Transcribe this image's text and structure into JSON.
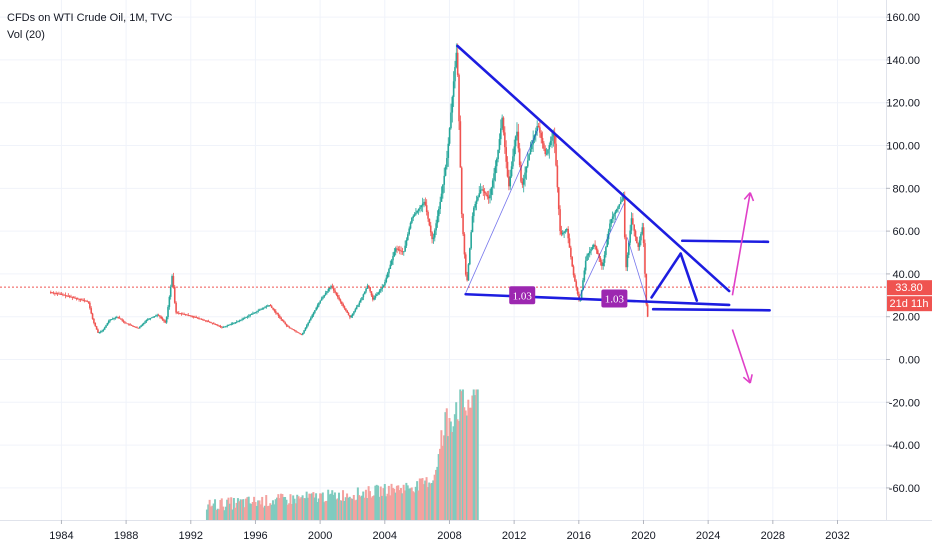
{
  "chart_data": {
    "type": "candlestick",
    "title": "CFDs on WTI Crude Oil, 1M, TVC",
    "indicator": "Vol (20)",
    "x_ticks": [
      "1984",
      "1988",
      "1992",
      "1996",
      "2000",
      "2004",
      "2008",
      "2012",
      "2016",
      "2020",
      "2024",
      "2028",
      "2032"
    ],
    "y_ticks": [
      "160.00",
      "140.00",
      "120.00",
      "100.00",
      "80.00",
      "60.00",
      "40.00",
      "20.00",
      "0.00",
      "-20.00",
      "-40.00",
      "-60.00"
    ],
    "ylim": [
      -75,
      168
    ],
    "xlim": [
      1980.2,
      2035.0
    ],
    "last_price": "33.80",
    "countdown": "21d 11h",
    "price_path": [
      [
        1983.3,
        31.5
      ],
      [
        1984.0,
        30.5
      ],
      [
        1985.0,
        28.5
      ],
      [
        1985.7,
        27.0
      ],
      [
        1986.0,
        18.0
      ],
      [
        1986.3,
        12.5
      ],
      [
        1986.6,
        13.5
      ],
      [
        1987.0,
        18.5
      ],
      [
        1987.5,
        20.0
      ],
      [
        1988.0,
        17.0
      ],
      [
        1988.8,
        14.5
      ],
      [
        1989.3,
        18.5
      ],
      [
        1990.0,
        21.0
      ],
      [
        1990.5,
        17.0
      ],
      [
        1990.8,
        34.0
      ],
      [
        1990.9,
        40.0
      ],
      [
        1991.1,
        22.0
      ],
      [
        1992.0,
        20.5
      ],
      [
        1993.0,
        18.0
      ],
      [
        1994.0,
        15.0
      ],
      [
        1995.0,
        18.0
      ],
      [
        1996.0,
        22.0
      ],
      [
        1996.9,
        25.5
      ],
      [
        1997.5,
        20.0
      ],
      [
        1998.0,
        15.5
      ],
      [
        1998.9,
        11.5
      ],
      [
        1999.5,
        20.0
      ],
      [
        2000.0,
        27.0
      ],
      [
        2000.7,
        34.5
      ],
      [
        2001.3,
        27.0
      ],
      [
        2001.9,
        19.5
      ],
      [
        2002.5,
        27.0
      ],
      [
        2003.0,
        35.0
      ],
      [
        2003.3,
        28.0
      ],
      [
        2004.0,
        35.0
      ],
      [
        2004.7,
        52.0
      ],
      [
        2005.2,
        50.0
      ],
      [
        2005.7,
        66.0
      ],
      [
        2006.5,
        74.0
      ],
      [
        2007.0,
        55.0
      ],
      [
        2007.5,
        75.0
      ],
      [
        2007.9,
        95.0
      ],
      [
        2008.3,
        130.0
      ],
      [
        2008.5,
        146.0
      ],
      [
        2008.8,
        68.0
      ],
      [
        2009.1,
        34.0
      ],
      [
        2009.5,
        70.0
      ],
      [
        2010.0,
        80.0
      ],
      [
        2010.5,
        75.0
      ],
      [
        2011.0,
        95.0
      ],
      [
        2011.3,
        113.0
      ],
      [
        2011.7,
        80.0
      ],
      [
        2012.2,
        108.0
      ],
      [
        2012.5,
        80.0
      ],
      [
        2013.0,
        97.0
      ],
      [
        2013.5,
        110.0
      ],
      [
        2014.0,
        95.0
      ],
      [
        2014.5,
        107.0
      ],
      [
        2014.9,
        58.0
      ],
      [
        2015.3,
        61.0
      ],
      [
        2015.7,
        40.0
      ],
      [
        2016.1,
        26.0
      ],
      [
        2016.5,
        48.0
      ],
      [
        2017.0,
        54.0
      ],
      [
        2017.5,
        43.0
      ],
      [
        2018.0,
        65.0
      ],
      [
        2018.8,
        76.0
      ],
      [
        2018.95,
        42.0
      ],
      [
        2019.3,
        66.0
      ],
      [
        2019.7,
        52.0
      ],
      [
        2020.0,
        63.0
      ],
      [
        2020.25,
        20.0
      ]
    ],
    "volume": {
      "start_year": 1993.0,
      "end_year": 2009.8,
      "levels": [
        [
          1993.0,
          -68
        ],
        [
          1997.0,
          -66
        ],
        [
          2000.0,
          -64
        ],
        [
          2002.0,
          -63
        ],
        [
          2004.0,
          -61
        ],
        [
          2006.0,
          -59
        ],
        [
          2007.0,
          -56
        ],
        [
          2007.8,
          -30
        ],
        [
          2008.5,
          -20
        ],
        [
          2009.0,
          -22
        ],
        [
          2009.8,
          -15
        ]
      ]
    },
    "overlays": {
      "trend_lines": [
        {
          "from": [
            2008.5,
            146.5
          ],
          "to": [
            2025.3,
            32.0
          ]
        },
        {
          "from": [
            2009.0,
            30.5
          ],
          "to": [
            2025.3,
            25.5
          ]
        },
        {
          "from": [
            2020.6,
            23.5
          ],
          "to": [
            2027.8,
            23.0
          ]
        },
        {
          "from": [
            2022.4,
            55.5
          ],
          "to": [
            2027.7,
            55.0
          ]
        },
        {
          "from": [
            2020.5,
            29.0
          ],
          "to": [
            2022.3,
            49.5
          ]
        },
        {
          "from": [
            2022.3,
            49.5
          ],
          "to": [
            2023.3,
            27.5
          ]
        }
      ],
      "thin_path": [
        [
          2009.0,
          31.0
        ],
        [
          2013.5,
          108.0
        ]
      ],
      "thin_path_2": [
        [
          2016.0,
          28.5
        ],
        [
          2018.8,
          73.0
        ]
      ],
      "thin_path_3": [
        [
          2019.0,
          57.0
        ],
        [
          2020.2,
          27.5
        ]
      ],
      "up_arrow": {
        "from": [
          2025.5,
          30.0
        ],
        "to": [
          2026.6,
          78.0
        ]
      },
      "down_arrow": {
        "from": [
          2025.5,
          14.0
        ],
        "to": [
          2026.6,
          -11.0
        ]
      },
      "labels": [
        {
          "text": "1.03",
          "at": [
            2012.5,
            30.0
          ]
        },
        {
          "text": "1.03",
          "at": [
            2018.2,
            28.5
          ]
        }
      ]
    },
    "colors": {
      "up": "#26a69a",
      "down": "#ef5350",
      "volume_up": "#7fcbbf",
      "volume_down": "#f4a29f",
      "trend": "#1d1de0",
      "arrow": "#e040c8",
      "label_bg": "#9c27b0",
      "price_line": "#ef5350",
      "grid": "#f0f3fa",
      "axis": "#131722"
    }
  }
}
